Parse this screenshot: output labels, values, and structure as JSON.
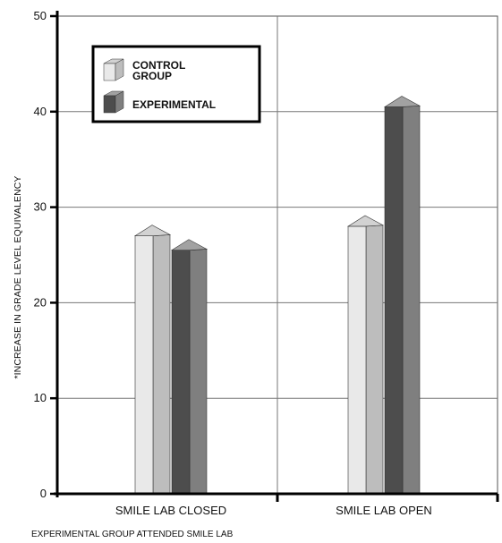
{
  "chart_data": {
    "type": "bar",
    "categories": [
      "SMILE LAB CLOSED",
      "SMILE LAB OPEN"
    ],
    "series": [
      {
        "name": "CONTROL GROUP",
        "values": [
          27,
          28
        ],
        "colors": {
          "front": "#e9e9e9",
          "side": "#bdbdbd",
          "top": "#d2d2d2"
        }
      },
      {
        "name": "EXPERIMENTAL",
        "values": [
          25.5,
          40.5
        ],
        "colors": {
          "front": "#4d4d4d",
          "side": "#7f7f7f",
          "top": "#a2a2a2"
        }
      }
    ],
    "legend_lines": [
      [
        "CONTROL",
        "GROUP"
      ],
      [
        "EXPERIMENTAL"
      ]
    ],
    "ylabel": "*INCREASE IN GRADE LEVEL EQUIVALENCY",
    "note": "EXPERIMENTAL GROUP ATTENDED SMILE LAB",
    "yticks": [
      0,
      10,
      20,
      30,
      40,
      50
    ],
    "ylim": [
      0,
      50
    ],
    "grid": true,
    "legend_position": "top-left"
  }
}
